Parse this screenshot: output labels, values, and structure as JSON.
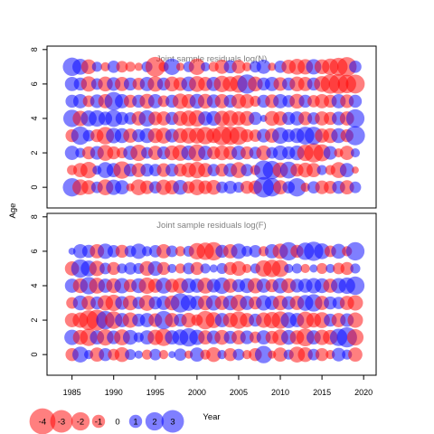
{
  "chart_data": {
    "type": "scatter",
    "subtype": "bubble",
    "xlabel": "Year",
    "ylabel": "Age",
    "xlim": [
      1982,
      2021.5
    ],
    "x_ticks": [
      1985,
      1990,
      1995,
      2000,
      2005,
      2010,
      2015,
      2020
    ],
    "years": [
      1985,
      1986,
      1987,
      1988,
      1989,
      1990,
      1991,
      1992,
      1993,
      1994,
      1995,
      1996,
      1997,
      1998,
      1999,
      2000,
      2001,
      2002,
      2003,
      2004,
      2005,
      2006,
      2007,
      2008,
      2009,
      2010,
      2011,
      2012,
      2013,
      2014,
      2015,
      2016,
      2017,
      2018,
      2019
    ],
    "colors": {
      "negative": "#ff0000",
      "positive": "#0000ff",
      "alpha": 0.5
    },
    "panels": [
      {
        "title": "Joint sample residuals log(N)",
        "ages": [
          0,
          1,
          2,
          3,
          4,
          5,
          6,
          7
        ],
        "ylim": [
          -1.2,
          8.2
        ],
        "y_ticks": [
          0,
          2,
          4,
          6,
          8
        ],
        "residuals": [
          [
            2.0,
            -1.5,
            -1.2,
            0.8,
            -1.5,
            1.4,
            1.2,
            -0.4,
            -1.5,
            -1.1,
            0.9,
            -1.4,
            -1.2,
            1.3,
            -0.9,
            -1.5,
            -1.1,
            -1.3,
            0.8,
            1.0,
            0.7,
            -1.0,
            -1.1,
            2.5,
            2.0,
            -1.2,
            0.9,
            2.0,
            -0.5,
            0.9,
            -1.1,
            -1.0,
            1.0,
            -1.2,
            0.8
          ],
          [
            -0.6,
            -1.2,
            -1.6,
            0.5,
            1.5,
            1.2,
            -1.8,
            1.0,
            -1.2,
            1.0,
            0.9,
            -1.1,
            1.0,
            -1.0,
            -1.3,
            -1.6,
            -1.2,
            0.9,
            -1.0,
            1.1,
            -1.5,
            0.9,
            -0.6,
            2.2,
            2.0,
            -1.4,
            1.7,
            -1.0,
            -1.3,
            -1.2,
            0.6,
            -0.6,
            -1.5,
            1.2,
            -0.3
          ],
          [
            1.2,
            0.6,
            -1.0,
            1.1,
            -1.5,
            -1.0,
            -0.7,
            1.2,
            -1.6,
            0.8,
            -1.2,
            1.0,
            -1.3,
            -1.5,
            1.3,
            -1.7,
            1.2,
            -1.0,
            -1.3,
            -1.1,
            1.2,
            -1.0,
            0.9,
            -1.3,
            0.8,
            1.3,
            1.0,
            1.3,
            -1.6,
            -2.2,
            -1.7,
            1.1,
            -0.5,
            -1.2,
            0.5
          ],
          [
            -1.0,
            2.0,
            0.8,
            -1.0,
            -1.8,
            1.4,
            1.3,
            -1.2,
            1.0,
            1.3,
            -1.3,
            -1.5,
            1.1,
            -1.3,
            -1.5,
            -1.5,
            -1.8,
            -1.3,
            -2.2,
            -2.0,
            -2.0,
            -1.0,
            -0.9,
            1.1,
            -1.2,
            1.6,
            1.0,
            1.3,
            1.9,
            1.9,
            -1.2,
            -1.3,
            1.3,
            -1.0,
            2.2
          ],
          [
            1.8,
            -1.4,
            1.5,
            1.6,
            1.1,
            1.7,
            1.0,
            0.9,
            -1.2,
            1.6,
            -1.1,
            -1.2,
            1.0,
            -1.3,
            -1.5,
            -1.6,
            1.2,
            1.3,
            -1.4,
            -1.5,
            -1.2,
            -1.3,
            1.0,
            0.3,
            -1.3,
            -1.2,
            1.0,
            1.2,
            -1.1,
            0.9,
            -1.2,
            -1.0,
            1.1,
            -1.2,
            2.0
          ],
          [
            1.0,
            1.2,
            -0.8,
            1.1,
            -1.2,
            2.0,
            1.2,
            -1.0,
            1.0,
            -1.3,
            1.2,
            -0.8,
            1.0,
            -1.4,
            -1.2,
            1.3,
            -1.3,
            1.1,
            -1.2,
            1.0,
            -1.3,
            -1.2,
            -0.7,
            1.0,
            -1.1,
            1.2,
            0.9,
            -1.3,
            1.0,
            -0.9,
            -1.2,
            -1.0,
            1.2,
            -1.1,
            1.0
          ],
          [
            1.2,
            1.0,
            -1.4,
            0.8,
            -1.3,
            1.1,
            -1.2,
            1.0,
            -0.9,
            1.2,
            -1.4,
            1.0,
            -1.3,
            -1.1,
            1.3,
            -1.5,
            -1.2,
            1.2,
            -1.6,
            -1.4,
            -1.8,
            2.2,
            -1.3,
            1.0,
            1.2,
            -1.1,
            1.0,
            -1.3,
            -1.2,
            1.0,
            -1.5,
            -2.2,
            -2.3,
            -2.0,
            -2.1
          ],
          [
            2.0,
            1.5,
            -1.3,
            0.6,
            -0.5,
            0.9,
            -0.8,
            -0.6,
            -0.4,
            0.7,
            -2.3,
            -0.6,
            1.6,
            -0.4,
            0.7,
            -1.6,
            0.5,
            -0.6,
            -1.2,
            1.0,
            -1.1,
            -0.5,
            0.8,
            1.2,
            -0.4,
            0.9,
            -1.2,
            -1.5,
            -1.4,
            1.4,
            -1.3,
            -1.6,
            -1.9,
            -2.2,
            0.9
          ]
        ]
      },
      {
        "title": "Joint sample residuals log(F)",
        "ages": [
          0,
          1,
          2,
          3,
          4,
          5,
          6
        ],
        "ylim": [
          -1.2,
          8.2
        ],
        "y_ticks": [
          0,
          2,
          4,
          6,
          8
        ],
        "residuals": [
          [
            -1.0,
            1.5,
            0.5,
            -1.2,
            1.0,
            -0.8,
            -1.3,
            0.7,
            0.4,
            -0.6,
            0.8,
            -0.5,
            0.3,
            0.9,
            -0.4,
            1.2,
            -0.6,
            -1.3,
            0.5,
            -1.0,
            0.8,
            -0.5,
            -1.0,
            1.8,
            -0.4,
            -1.2,
            0.6,
            -1.5,
            -1.3,
            0.8,
            -1.0,
            -0.5,
            1.1,
            0.6,
            -1.2
          ],
          [
            1.4,
            -1.3,
            -1.8,
            1.2,
            -1.6,
            1.1,
            -1.5,
            1.3,
            0.6,
            1.2,
            -1.4,
            -1.8,
            1.2,
            1.5,
            2.0,
            1.4,
            -1.2,
            1.1,
            -1.3,
            1.0,
            -1.2,
            1.1,
            -0.8,
            1.2,
            -1.0,
            -1.5,
            1.3,
            -1.2,
            -1.9,
            1.2,
            -1.4,
            -1.3,
            1.8,
            2.4,
            -1.6
          ],
          [
            -1.2,
            -1.4,
            -2.3,
            -2.6,
            2.0,
            -1.8,
            1.2,
            -1.4,
            1.0,
            1.2,
            -1.1,
            2.0,
            -1.2,
            1.0,
            -1.3,
            -0.8,
            -2.0,
            -1.5,
            1.2,
            -1.3,
            -1.8,
            -1.2,
            1.0,
            -1.4,
            -1.6,
            -1.8,
            1.5,
            1.2,
            -1.7,
            -1.3,
            -1.5,
            1.0,
            -1.2,
            1.1,
            -1.4
          ],
          [
            -0.8,
            1.3,
            -1.2,
            1.0,
            -1.4,
            -1.6,
            1.1,
            -1.3,
            0.9,
            -1.5,
            1.0,
            1.2,
            -1.3,
            2.2,
            1.5,
            1.2,
            -1.3,
            1.4,
            -1.2,
            1.3,
            -1.6,
            1.2,
            -1.0,
            1.4,
            1.2,
            -1.3,
            1.1,
            -1.2,
            1.5,
            1.8,
            -1.2,
            1.0,
            0.9,
            -1.2,
            -1.4
          ],
          [
            1.2,
            -1.3,
            1.8,
            -1.5,
            1.2,
            -1.3,
            1.4,
            -1.0,
            1.3,
            -1.6,
            -1.2,
            1.5,
            -1.1,
            -1.4,
            1.3,
            1.2,
            -1.5,
            1.1,
            1.6,
            -1.2,
            1.0,
            1.3,
            -1.4,
            1.2,
            -1.0,
            1.4,
            -1.3,
            1.1,
            1.2,
            1.4,
            1.3,
            -1.2,
            1.4,
            1.6,
            2.0
          ],
          [
            -1.2,
            2.0,
            1.5,
            -1.4,
            0.8,
            -1.0,
            0.6,
            0.9,
            0.7,
            -1.3,
            1.3,
            -1.0,
            0.5,
            -0.6,
            0.8,
            -1.0,
            0.6,
            0.4,
            0.7,
            -1.0,
            -1.3,
            -0.5,
            0.6,
            -1.6,
            -1.8,
            -1.7,
            0.5,
            0.6,
            -0.5,
            0.4,
            -0.7,
            0.5,
            -0.8,
            -1.0,
            0.6
          ],
          [
            0.3,
            1.2,
            1.0,
            -1.2,
            1.4,
            0.9,
            -1.0,
            0.8,
            1.4,
            0.6,
            0.9,
            -1.2,
            0.8,
            -0.6,
            0.7,
            -1.6,
            -1.8,
            -2.0,
            1.0,
            -1.2,
            1.4,
            0.7,
            0.9,
            -0.6,
            1.2,
            -1.4,
            2.0,
            -1.0,
            1.8,
            2.2,
            1.5,
            -0.8,
            1.3,
            -0.6,
            2.0
          ]
        ]
      }
    ],
    "legend": {
      "placement": "bottom-left",
      "labels": [
        "-4",
        "-3",
        "-2",
        "-1",
        "0",
        "1",
        "2",
        "3"
      ],
      "values": [
        -4,
        -3,
        -2,
        -1,
        0,
        1,
        2,
        3
      ]
    }
  }
}
